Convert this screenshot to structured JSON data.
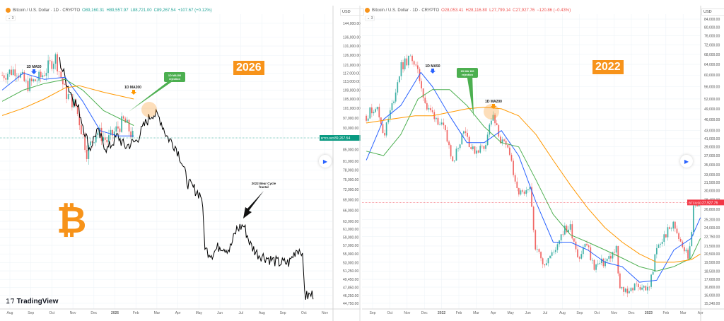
{
  "colors": {
    "up": "#26a69a",
    "down": "#ef5350",
    "ma50": "#2962ff",
    "ma100": "#4caf50",
    "ma200": "#ff9800",
    "fractal": "#000000",
    "accent": "#f7931a"
  },
  "left": {
    "header": {
      "title": "Bitcoin / U.S. Dollar · 1D · CRYPTO",
      "o": "O89,160.31",
      "h": "H89,557.97",
      "l": "L88,721.00",
      "c": "C89,267.54",
      "chg": "+107.67 (+0.12%)"
    },
    "indicators": "⌄ 3",
    "currency": "USD",
    "badge": "2026",
    "logo_text": "TradingView",
    "btc_symbol": "₿",
    "last_price_label": "BTCUSD",
    "last_price": "89,267.54",
    "play_icon": "play-icon"
  },
  "right": {
    "header": {
      "title": "Bitcoin / U.S. Dollar · 1D · CRYPTO",
      "o": "O28,053.41",
      "h": "H28,116.80",
      "l": "L27,799.14",
      "c": "C27,927.76",
      "chg": "−120.86 (−0.43%)"
    },
    "indicators": "⌄ 3",
    "currency": "USD",
    "badge": "2022",
    "last_price_label": "BTCUSD",
    "last_price": "27,927.76",
    "play_icon": "play-icon"
  },
  "chart_data": [
    {
      "type": "line",
      "scale": "log",
      "grid": true,
      "x_ticks": [
        "Aug",
        "Sep",
        "Oct",
        "Nov",
        "Dec",
        "2026",
        "Feb",
        "Mar",
        "Apr",
        "May",
        "Jun",
        "Jul",
        "Aug",
        "Sep",
        "Oct",
        "Nov"
      ],
      "y_ticks": [
        "144,000.00",
        "136,000.00",
        "131,000.00",
        "126,000.00",
        "121,000.00",
        "117,000.00",
        "113,000.00",
        "109,000.00",
        "105,000.00",
        "101,000.00",
        "97,000.00",
        "93,000.00",
        "85,000.00",
        "81,000.00",
        "78,000.00",
        "75,000.00",
        "72,000.00",
        "69,000.00",
        "66,000.00",
        "63,000.00",
        "61,000.00",
        "59,000.00",
        "57,000.00",
        "55,000.00",
        "53,000.00",
        "51,250.00",
        "49,450.00",
        "47,850.00",
        "46,250.00",
        "44,750.00"
      ],
      "ylim": [
        44750,
        144000
      ],
      "annotations": [
        "1D MA50",
        "1D MA200",
        "1D MA100 rejection",
        "2022 Bear Cycle fractal"
      ],
      "series": [
        {
          "kind": "candles",
          "points": [
            [
              "2025-07-20",
              116000
            ],
            [
              "2025-08-10",
              119000
            ],
            [
              "2025-08-25",
              111000
            ],
            [
              "2025-09-15",
              115000
            ],
            [
              "2025-10-06",
              125000
            ],
            [
              "2025-10-20",
              108000
            ],
            [
              "2025-11-05",
              102000
            ],
            [
              "2025-11-21",
              84000
            ],
            [
              "2025-12-05",
              92000
            ],
            [
              "2025-12-20",
              88000
            ],
            [
              "2026-01-05",
              93000
            ],
            [
              "2026-01-14",
              96000
            ],
            [
              "2026-01-28",
              89000
            ]
          ]
        },
        {
          "kind": "fractal",
          "points": [
            [
              "2025-10-12",
              123000
            ],
            [
              "2025-10-25",
              110000
            ],
            [
              "2025-11-10",
              100000
            ],
            [
              "2025-11-25",
              85000
            ],
            [
              "2025-12-05",
              92000
            ],
            [
              "2025-12-20",
              85000
            ],
            [
              "2026-01-05",
              90000
            ],
            [
              "2026-01-15",
              86000
            ],
            [
              "2026-02-01",
              88000
            ],
            [
              "2026-02-15",
              95000
            ],
            [
              "2026-02-25",
              99000
            ],
            [
              "2026-03-05",
              97000
            ],
            [
              "2026-03-15",
              90000
            ],
            [
              "2026-03-28",
              86000
            ],
            [
              "2026-04-05",
              82000
            ],
            [
              "2026-04-15",
              74000
            ],
            [
              "2026-04-25",
              72000
            ],
            [
              "2026-05-05",
              70000
            ],
            [
              "2026-05-10",
              56000
            ],
            [
              "2026-05-20",
              55000
            ],
            [
              "2026-06-01",
              57000
            ],
            [
              "2026-06-15",
              56000
            ],
            [
              "2026-06-25",
              61000
            ],
            [
              "2026-07-05",
              62000
            ],
            [
              "2026-07-15",
              57000
            ],
            [
              "2026-07-25",
              55000
            ],
            [
              "2026-08-10",
              54000
            ],
            [
              "2026-08-25",
              53000
            ],
            [
              "2026-09-10",
              53000
            ],
            [
              "2026-09-20",
              56000
            ],
            [
              "2026-09-28",
              56000
            ],
            [
              "2026-10-03",
              46000
            ],
            [
              "2026-10-15",
              46500
            ]
          ]
        },
        {
          "kind": "ma50",
          "points": [
            [
              "2025-07-20",
              109000
            ],
            [
              "2025-08-20",
              117000
            ],
            [
              "2025-09-20",
              114000
            ],
            [
              "2025-10-20",
              115000
            ],
            [
              "2025-11-15",
              104000
            ],
            [
              "2025-12-10",
              92000
            ],
            [
              "2026-01-05",
              90000
            ],
            [
              "2026-01-28",
              90000
            ]
          ]
        },
        {
          "kind": "ma100",
          "points": [
            [
              "2025-07-20",
              104000
            ],
            [
              "2025-08-20",
              109000
            ],
            [
              "2025-09-20",
              112000
            ],
            [
              "2025-10-20",
              114000
            ],
            [
              "2025-11-15",
              109000
            ],
            [
              "2025-12-15",
              100000
            ],
            [
              "2026-01-28",
              94000
            ]
          ]
        },
        {
          "kind": "ma200",
          "points": [
            [
              "2025-07-20",
              98000
            ],
            [
              "2025-08-20",
              101000
            ],
            [
              "2025-09-20",
              105000
            ],
            [
              "2025-10-20",
              110000
            ],
            [
              "2025-11-10",
              111000
            ],
            [
              "2025-12-15",
              108000
            ],
            [
              "2026-01-28",
              105000
            ]
          ]
        }
      ]
    },
    {
      "type": "line",
      "scale": "log",
      "grid": true,
      "x_ticks": [
        "Sep",
        "Oct",
        "Nov",
        "Dec",
        "2022",
        "Feb",
        "Mar",
        "Apr",
        "May",
        "Jun",
        "Jul",
        "Aug",
        "Sep",
        "Oct",
        "Nov",
        "Dec",
        "2023",
        "Feb",
        "Mar",
        "Apr"
      ],
      "y_ticks": [
        "84,000.00",
        "80,000.00",
        "76,000.00",
        "72,000.00",
        "68,000.00",
        "64,000.00",
        "60,000.00",
        "56,000.00",
        "52,000.00",
        "49,000.00",
        "46,000.00",
        "43,000.00",
        "41,000.00",
        "39,000.00",
        "37,000.00",
        "35,000.00",
        "33,000.00",
        "31,500.00",
        "30,000.00",
        "28,400.00",
        "26,800.00",
        "25,200.00",
        "24,000.00",
        "22,750.00",
        "21,500.00",
        "20,500.00",
        "19,500.00",
        "18,500.00",
        "17,600.00",
        "16,800.00",
        "16,000.00",
        "15,240.00"
      ],
      "ylim": [
        15240,
        84000
      ],
      "annotations": [
        "1D MA50",
        "1D MA100 rejection",
        "1D MA200"
      ],
      "series": [
        {
          "kind": "candles",
          "points": [
            [
              "2021-08-20",
              47000
            ],
            [
              "2021-09-07",
              50000
            ],
            [
              "2021-09-21",
              42000
            ],
            [
              "2021-10-05",
              50000
            ],
            [
              "2021-10-20",
              63000
            ],
            [
              "2021-11-10",
              67000
            ],
            [
              "2021-11-25",
              57000
            ],
            [
              "2021-12-05",
              49000
            ],
            [
              "2021-12-20",
              47000
            ],
            [
              "2022-01-05",
              43000
            ],
            [
              "2022-01-22",
              36000
            ],
            [
              "2022-02-10",
              44000
            ],
            [
              "2022-02-24",
              38000
            ],
            [
              "2022-03-15",
              39000
            ],
            [
              "2022-03-29",
              47000
            ],
            [
              "2022-04-15",
              40000
            ],
            [
              "2022-04-30",
              38000
            ],
            [
              "2022-05-10",
              30000
            ],
            [
              "2022-05-25",
              29000
            ],
            [
              "2022-06-05",
              30000
            ],
            [
              "2022-06-15",
              21000
            ],
            [
              "2022-06-30",
              19500
            ],
            [
              "2022-07-15",
              20500
            ],
            [
              "2022-07-30",
              23500
            ],
            [
              "2022-08-15",
              24000
            ],
            [
              "2022-08-30",
              20000
            ],
            [
              "2022-09-12",
              22000
            ],
            [
              "2022-09-25",
              19000
            ],
            [
              "2022-10-15",
              19500
            ],
            [
              "2022-11-05",
              21000
            ],
            [
              "2022-11-10",
              16500
            ],
            [
              "2022-11-25",
              16500
            ],
            [
              "2022-12-15",
              17000
            ],
            [
              "2022-12-31",
              16500
            ],
            [
              "2023-01-15",
              21000
            ],
            [
              "2023-01-30",
              23000
            ],
            [
              "2023-02-15",
              24500
            ],
            [
              "2023-03-10",
              20000
            ],
            [
              "2023-03-20",
              27500
            ],
            [
              "2023-04-01",
              28000
            ]
          ]
        },
        {
          "kind": "ma50",
          "points": [
            [
              "2021-08-20",
              36000
            ],
            [
              "2021-09-20",
              46000
            ],
            [
              "2021-10-20",
              50000
            ],
            [
              "2021-11-25",
              61000
            ],
            [
              "2021-12-15",
              56000
            ],
            [
              "2022-01-15",
              47000
            ],
            [
              "2022-02-15",
              40000
            ],
            [
              "2022-03-15",
              40000
            ],
            [
              "2022-04-15",
              43000
            ],
            [
              "2022-05-15",
              37000
            ],
            [
              "2022-06-15",
              28000
            ],
            [
              "2022-07-15",
              22000
            ],
            [
              "2022-08-15",
              22000
            ],
            [
              "2022-09-15",
              21000
            ],
            [
              "2022-10-15",
              19500
            ],
            [
              "2022-11-15",
              19000
            ],
            [
              "2022-12-15",
              17300
            ],
            [
              "2023-01-15",
              17500
            ],
            [
              "2023-02-15",
              21000
            ],
            [
              "2023-03-15",
              22500
            ],
            [
              "2023-04-01",
              25500
            ]
          ]
        },
        {
          "kind": "ma100",
          "points": [
            [
              "2021-08-20",
              38000
            ],
            [
              "2021-09-20",
              37000
            ],
            [
              "2021-10-20",
              42000
            ],
            [
              "2021-11-20",
              52000
            ],
            [
              "2021-12-15",
              55000
            ],
            [
              "2022-01-15",
              55000
            ],
            [
              "2022-02-15",
              50000
            ],
            [
              "2022-03-15",
              44000
            ],
            [
              "2022-04-15",
              40000
            ],
            [
              "2022-05-15",
              39000
            ],
            [
              "2022-06-15",
              32000
            ],
            [
              "2022-07-15",
              26000
            ],
            [
              "2022-08-15",
              23000
            ],
            [
              "2022-09-15",
              22000
            ],
            [
              "2022-10-15",
              21000
            ],
            [
              "2022-11-15",
              20000
            ],
            [
              "2022-12-15",
              19000
            ],
            [
              "2023-01-15",
              18500
            ],
            [
              "2023-02-15",
              19000
            ],
            [
              "2023-03-15",
              20000
            ],
            [
              "2023-04-01",
              22500
            ]
          ]
        },
        {
          "kind": "ma200",
          "points": [
            [
              "2021-08-20",
              45000
            ],
            [
              "2021-10-01",
              46000
            ],
            [
              "2021-11-15",
              47000
            ],
            [
              "2021-12-15",
              47000
            ],
            [
              "2022-01-15",
              48000
            ],
            [
              "2022-02-15",
              49000
            ],
            [
              "2022-03-15",
              49500
            ],
            [
              "2022-04-15",
              49000
            ],
            [
              "2022-05-15",
              47000
            ],
            [
              "2022-06-15",
              42000
            ],
            [
              "2022-07-15",
              36000
            ],
            [
              "2022-08-15",
              31000
            ],
            [
              "2022-09-15",
              27000
            ],
            [
              "2022-10-15",
              24000
            ],
            [
              "2022-11-15",
              22000
            ],
            [
              "2022-12-15",
              20500
            ],
            [
              "2023-01-15",
              19500
            ],
            [
              "2023-02-15",
              19500
            ],
            [
              "2023-03-15",
              19800
            ],
            [
              "2023-04-01",
              20500
            ]
          ]
        }
      ]
    }
  ]
}
